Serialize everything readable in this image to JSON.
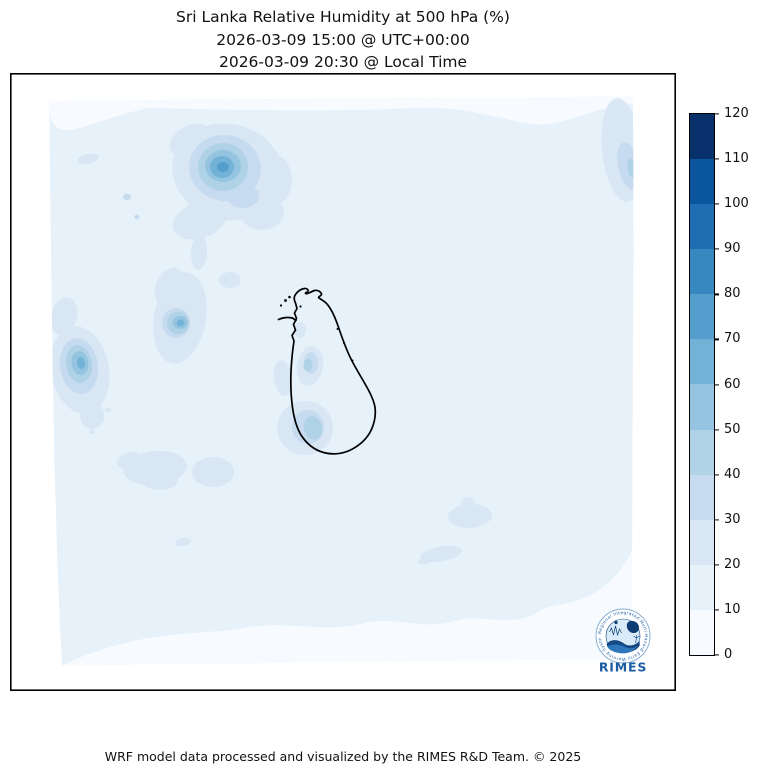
{
  "figure": {
    "title_line1": "Sri Lanka Relative Humidity at 500 hPa (%)",
    "title_line2": "2026-03-09 15:00 @ UTC+00:00",
    "title_line3": "2026-03-09 20:30 @ Local Time",
    "footer_credit": "WRF model data processed and visualized by the RIMES R&D Team. © 2025"
  },
  "colorbar": {
    "min": 0,
    "max": 120,
    "ticks": [
      0,
      10,
      20,
      30,
      40,
      50,
      60,
      70,
      80,
      90,
      100,
      110,
      120
    ],
    "band_colors_low_to_high": [
      "#f7fbff",
      "#e7f1fa",
      "#d9e7f5",
      "#c6dbef",
      "#b0d2e7",
      "#94c4df",
      "#72b2d7",
      "#539ecc",
      "#3787c0",
      "#1f6eb3",
      "#0b559f",
      "#08306b"
    ],
    "outline_color": "#000000"
  },
  "logo": {
    "name": "RIMES",
    "ring_text": "Regional Integrated Multi-Hazard Early Warning System",
    "brand_blue": "#1c5ca3",
    "brand_navy": "#0e3d73"
  },
  "chart_data": {
    "type": "heatmap",
    "title": "Sri Lanka Relative Humidity at 500 hPa (%)",
    "subtitle_utc": "2026-03-09 15:00 @ UTC+00:00",
    "subtitle_local": "2026-03-09 20:30 @ Local Time",
    "variable": "Relative Humidity",
    "pressure_level": "500 hPa",
    "units": "%",
    "colormap": "Blues (12 discrete bands)",
    "contour_levels": [
      0,
      10,
      20,
      30,
      40,
      50,
      60,
      70,
      80,
      90,
      100,
      110,
      120
    ],
    "colorbar_range": [
      0,
      120
    ],
    "legend_position": "right vertical colorbar",
    "grid": false,
    "background_band_percent": "10-20",
    "map_overlay": "Sri Lanka coastline outline in black, centered",
    "features": [
      {
        "label": "humidity maximum north-west of Sri Lanka (upper-left quadrant)",
        "peak_band_percent": "70-80"
      },
      {
        "label": "humidity maximum west of Sri Lanka (left-center)",
        "peak_band_percent": "60-70"
      },
      {
        "label": "humidity maximum at left map edge",
        "peak_band_percent": "60-70"
      },
      {
        "label": "patch over south-west Sri Lanka",
        "peak_band_percent": "40-50"
      },
      {
        "label": "patch over west-central Sri Lanka",
        "peak_band_percent": "40-50"
      },
      {
        "label": "elongated patch at upper-right map edge",
        "peak_band_percent": "30-40"
      },
      {
        "label": "light patches south and south-east of Sri Lanka",
        "peak_band_percent": "20-30"
      },
      {
        "label": "lightest (0-10%) fringes along top and bottom domain edges",
        "peak_band_percent": "0-10"
      }
    ]
  }
}
